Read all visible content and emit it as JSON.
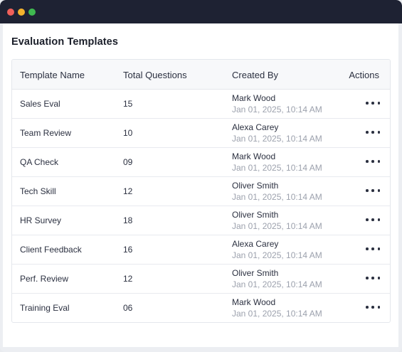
{
  "window": {
    "controls": [
      "close",
      "minimize",
      "maximize"
    ]
  },
  "page": {
    "title": "Evaluation Templates"
  },
  "table": {
    "headers": {
      "name": "Template Name",
      "questions": "Total Questions",
      "created_by": "Created By",
      "actions": "Actions"
    },
    "rows": [
      {
        "name": "Sales Eval",
        "questions": "15",
        "creator": "Mark Wood",
        "date": "Jan 01, 2025, 10:14 AM"
      },
      {
        "name": "Team Review",
        "questions": "10",
        "creator": "Alexa Carey",
        "date": "Jan 01, 2025, 10:14 AM"
      },
      {
        "name": "QA Check",
        "questions": "09",
        "creator": "Mark Wood",
        "date": "Jan 01, 2025, 10:14 AM"
      },
      {
        "name": "Tech Skill",
        "questions": "12",
        "creator": "Oliver Smith",
        "date": "Jan 01, 2025, 10:14 AM"
      },
      {
        "name": "HR Survey",
        "questions": "18",
        "creator": "Oliver Smith",
        "date": "Jan 01, 2025, 10:14 AM"
      },
      {
        "name": "Client Feedback",
        "questions": "16",
        "creator": "Alexa Carey",
        "date": "Jan 01, 2025, 10:14 AM"
      },
      {
        "name": "Perf. Review",
        "questions": "12",
        "creator": "Oliver Smith",
        "date": "Jan 01, 2025, 10:14 AM"
      },
      {
        "name": "Training Eval",
        "questions": "06",
        "creator": "Mark Wood",
        "date": "Jan 01, 2025, 10:14 AM"
      }
    ]
  },
  "icons": {
    "actions": "more-horizontal-icon"
  },
  "colors": {
    "titlebar": "#1e2233",
    "close": "#f0605a",
    "minimize": "#f3b32d",
    "maximize": "#3fb950",
    "muted_text": "#9ca1ad"
  }
}
